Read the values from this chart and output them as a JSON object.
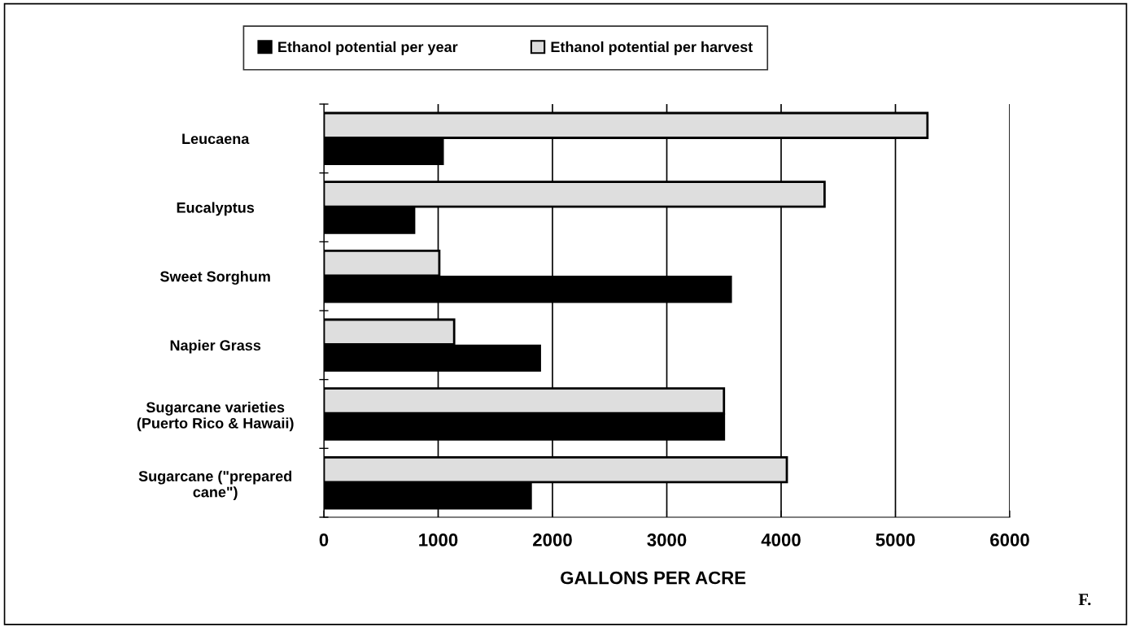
{
  "chart_data": {
    "type": "bar",
    "orientation": "horizontal",
    "categories": [
      "Leucaena",
      "Eucalyptus",
      "Sweet Sorghum",
      "Napier Grass",
      "Sugarcane varieties\n(Puerto Rico & Hawaii)",
      "Sugarcane (\"prepared\ncane\")"
    ],
    "series": [
      {
        "name": "Ethanol potential per harvest",
        "color": "#dedede",
        "values": [
          5280,
          4380,
          1010,
          1140,
          3500,
          4050
        ]
      },
      {
        "name": "Ethanol potential per year",
        "color": "#000000",
        "values": [
          1040,
          790,
          3560,
          1890,
          3500,
          1810
        ]
      }
    ],
    "xlabel": "GALLONS PER ACRE",
    "xlim": [
      0,
      6000
    ],
    "xticks": [
      0,
      1000,
      2000,
      3000,
      4000,
      5000,
      6000
    ],
    "grid": "x",
    "legend": "top",
    "annotations": [
      "F."
    ]
  }
}
